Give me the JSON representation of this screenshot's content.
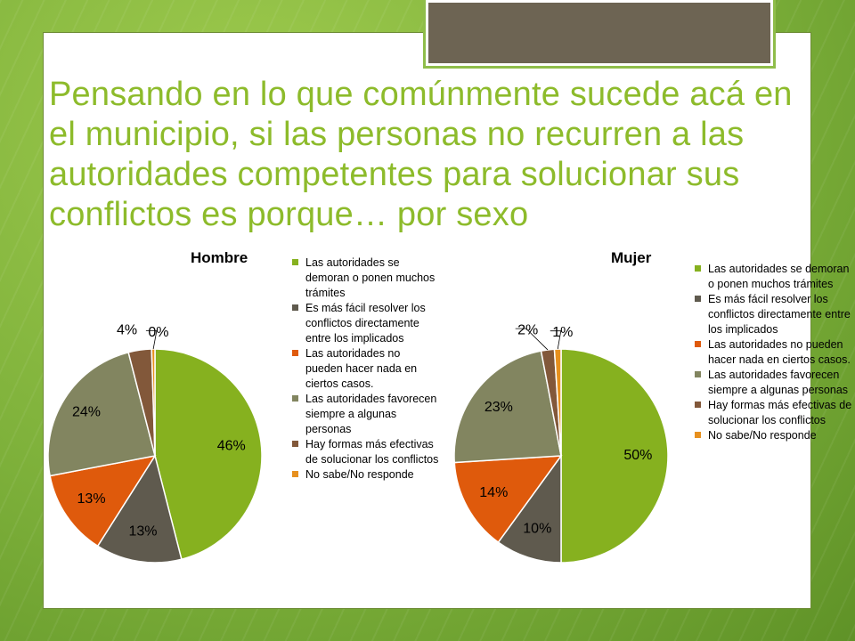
{
  "slide": {
    "title": "Pensando en lo que comúnmente sucede acá en el municipio, si las personas no recurren a las autoridades competentes para solucionar sus conflictos es porque… por sexo"
  },
  "colors": {
    "background": "#7fb13a",
    "title_text": "#8dbb2b",
    "title_box": "#6d6453"
  },
  "legend_items": [
    "Las autoridades se demoran o ponen muchos trámites",
    "Es más fácil resolver los conflictos directamente entre los implicados",
    "Las autoridades no pueden hacer nada en ciertos casos.",
    "Las autoridades favorecen siempre a algunas personas",
    "Hay formas más efectivas de solucionar los conflictos",
    "No sabe/No responde"
  ],
  "chart_data": [
    {
      "type": "pie",
      "title": "Hombre",
      "categories": [
        "Las autoridades se demoran o ponen muchos trámites",
        "Es más fácil resolver los conflictos directamente entre los implicados",
        "Las autoridades no pueden hacer nada en ciertos casos.",
        "Las autoridades favorecen siempre a algunas personas",
        "Hay formas más efectivas de solucionar los conflictos",
        "No sabe/No responde"
      ],
      "values": [
        46,
        13,
        13,
        24,
        3.5,
        0.5
      ],
      "data_labels": [
        "46%",
        "13%",
        "13%",
        "24%",
        "4%",
        "0%"
      ],
      "colors": [
        "#86b11f",
        "#5f5a4e",
        "#df5a0c",
        "#828560",
        "#82583a",
        "#e7901e"
      ],
      "legend_position": "right"
    },
    {
      "type": "pie",
      "title": "Mujer",
      "categories": [
        "Las autoridades se demoran o ponen muchos trámites",
        "Es más fácil resolver los conflictos directamente entre los implicados",
        "Las autoridades no pueden hacer nada en ciertos casos.",
        "Las autoridades favorecen siempre a algunas personas",
        "Hay formas más efectivas de solucionar los conflictos",
        "No sabe/No responde"
      ],
      "values": [
        50,
        10,
        14,
        23,
        2,
        1
      ],
      "data_labels": [
        "50%",
        "10%",
        "14%",
        "23%",
        "2%",
        "1%"
      ],
      "colors": [
        "#86b11f",
        "#5f5a4e",
        "#df5a0c",
        "#828560",
        "#82583a",
        "#e7901e"
      ],
      "legend_position": "right"
    }
  ]
}
